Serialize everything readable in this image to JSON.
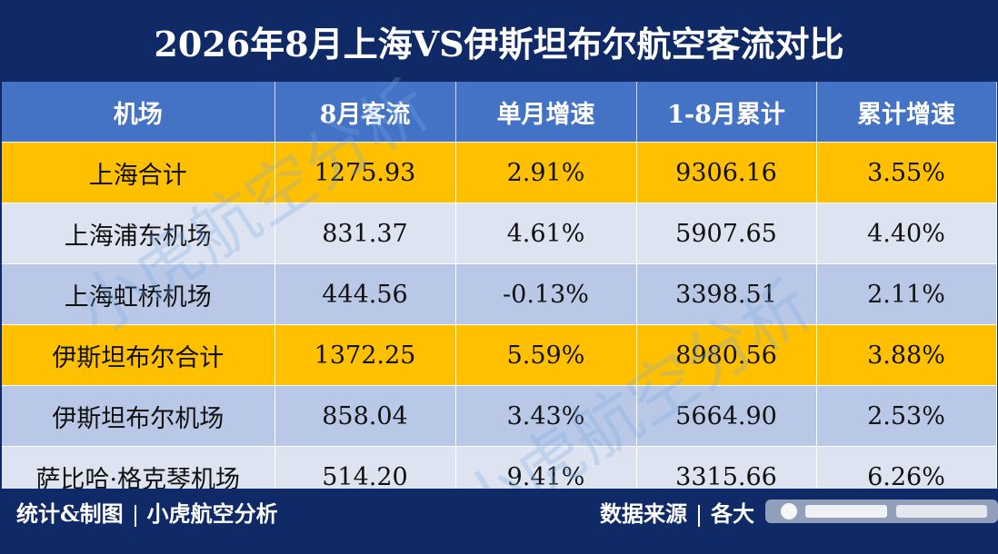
{
  "title": "2026年8月上海VS伊斯坦布尔航空客流对比",
  "headers": [
    "机场",
    "8月客流",
    "单月增速",
    "1-8月累计",
    "累计增速"
  ],
  "rows": [
    {
      "cells": [
        "上海合计",
        "1275.93",
        "2.91%",
        "9306.16",
        "3.55%"
      ]
    },
    {
      "cells": [
        "上海浦东机场",
        "831.37",
        "4.61%",
        "5907.65",
        "4.40%"
      ]
    },
    {
      "cells": [
        "上海虹桥机场",
        "444.56",
        "-0.13%",
        "3398.51",
        "2.11%"
      ]
    },
    {
      "cells": [
        "伊斯坦布尔合计",
        "1372.25",
        "5.59%",
        "8980.56",
        "3.88%"
      ]
    },
    {
      "cells": [
        "伊斯坦布尔机场",
        "858.04",
        "3.43%",
        "5664.90",
        "2.53%"
      ]
    },
    {
      "cells": [
        "萨比哈·格克琴机场",
        "514.20",
        "9.41%",
        "3315.66",
        "6.26%"
      ]
    }
  ],
  "footer": {
    "left_label": "统计&制图",
    "left_value": "小虎航空分析",
    "right_label": "数据来源",
    "right_value": "各大"
  },
  "watermark": "小虎航空分析",
  "colors": {
    "title_bg": "#0f2a66",
    "header_bg": "#4472c4",
    "total_row": "#ffc000",
    "light_row": "#dde3f0",
    "mid_row": "#b9c8e6"
  }
}
